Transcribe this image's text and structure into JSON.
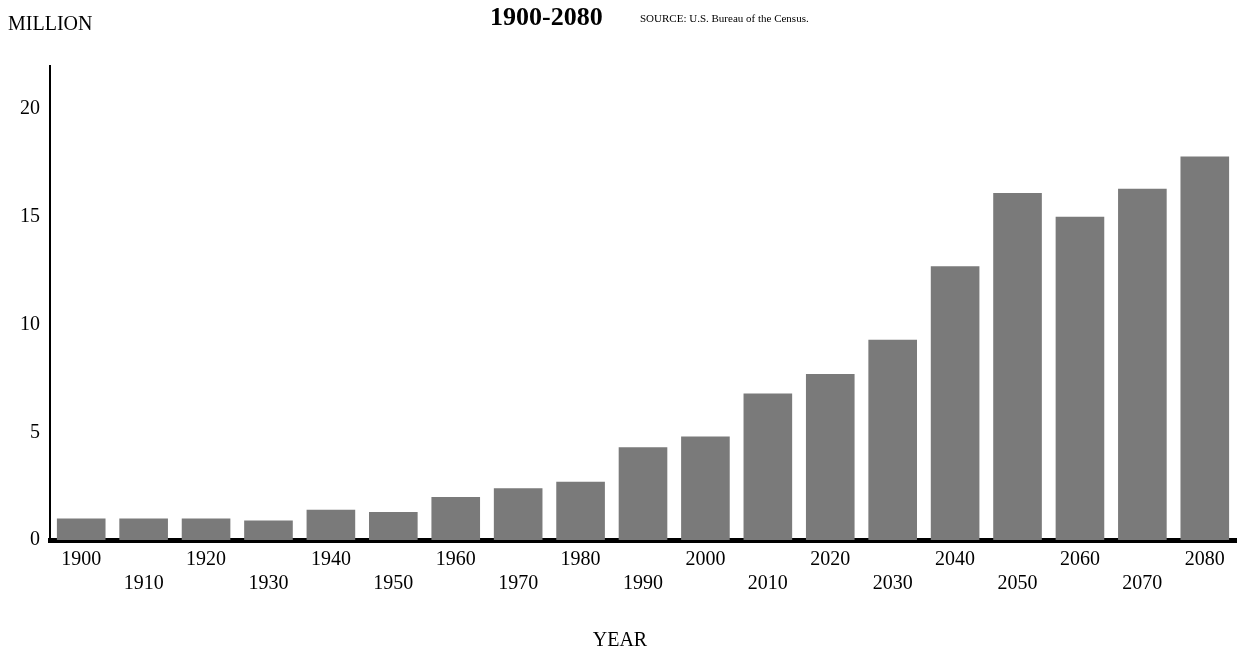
{
  "chart_data": {
    "type": "bar",
    "title": "1900-2080",
    "ylabel": "MILLION",
    "xlabel": "YEAR",
    "annotations": [
      "SOURCE: U.S. Bureau of the Census."
    ],
    "categories": [
      "1900",
      "1910",
      "1920",
      "1930",
      "1940",
      "1950",
      "1960",
      "1970",
      "1980",
      "1990",
      "2000",
      "2010",
      "2020",
      "2030",
      "2040",
      "2050",
      "2060",
      "2070",
      "2080"
    ],
    "values": [
      1.0,
      1.0,
      1.0,
      0.9,
      1.4,
      1.3,
      2.0,
      2.4,
      2.7,
      4.3,
      4.8,
      6.8,
      7.7,
      9.3,
      12.7,
      16.1,
      15.0,
      16.3,
      17.8
    ],
    "color": "#7a7a7a",
    "ylim": [
      0,
      22
    ],
    "yticks": [
      0,
      5,
      10,
      15,
      20
    ],
    "grid": false,
    "legend": false
  }
}
